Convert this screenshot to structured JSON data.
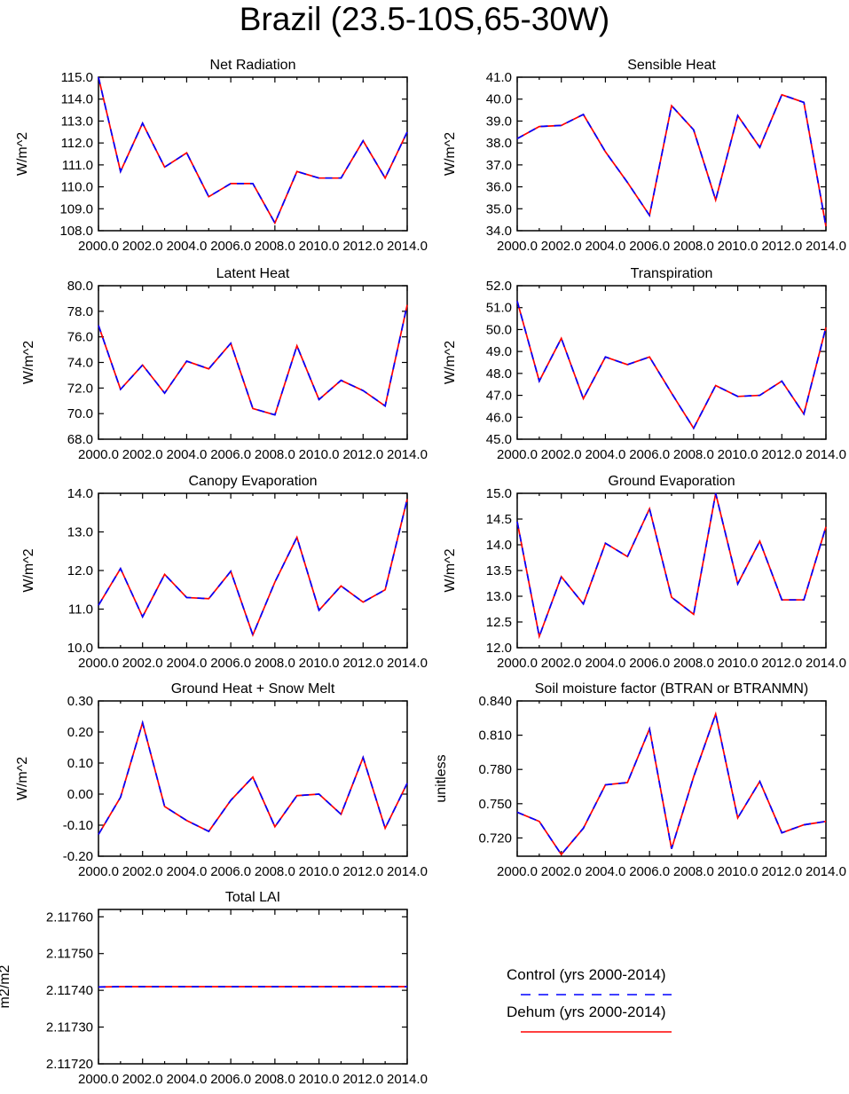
{
  "page_title": "Brazil (23.5-10S,65-30W)",
  "legend": {
    "control_label": "Control (yrs 2000-2014)",
    "control_color": "#0000ff",
    "dehum_label": "Dehum (yrs 2000-2014)",
    "dehum_color": "#ff0000"
  },
  "chart_data": [
    {
      "type": "line",
      "title": "Net Radiation",
      "ylabel": "W/m^2",
      "xlabel": "",
      "x": [
        2000,
        2001,
        2002,
        2003,
        2004,
        2005,
        2006,
        2007,
        2008,
        2009,
        2010,
        2011,
        2012,
        2013,
        2014
      ],
      "xlim": [
        2000,
        2014
      ],
      "xticks": [
        "2000.0",
        "2002.0",
        "2004.0",
        "2006.0",
        "2008.0",
        "2010.0",
        "2012.0",
        "2014.0"
      ],
      "ylim": [
        108.0,
        115.0
      ],
      "yticks": [
        "108.0",
        "109.0",
        "110.0",
        "111.0",
        "112.0",
        "113.0",
        "114.0",
        "115.0"
      ],
      "series": [
        {
          "name": "Control (yrs 2000-2014)",
          "values": [
            115.0,
            110.7,
            112.9,
            110.9,
            111.55,
            109.55,
            110.15,
            110.15,
            108.35,
            110.7,
            110.4,
            110.4,
            112.1,
            110.4,
            112.5
          ]
        },
        {
          "name": "Dehum (yrs 2000-2014)",
          "values": [
            115.0,
            110.7,
            112.9,
            110.9,
            111.55,
            109.55,
            110.15,
            110.15,
            108.35,
            110.7,
            110.4,
            110.4,
            112.1,
            110.4,
            112.5
          ]
        }
      ]
    },
    {
      "type": "line",
      "title": "Sensible Heat",
      "ylabel": "W/m^2",
      "xlabel": "",
      "x": [
        2000,
        2001,
        2002,
        2003,
        2004,
        2005,
        2006,
        2007,
        2008,
        2009,
        2010,
        2011,
        2012,
        2013,
        2014
      ],
      "xlim": [
        2000,
        2014
      ],
      "xticks": [
        "2000.0",
        "2002.0",
        "2004.0",
        "2006.0",
        "2008.0",
        "2010.0",
        "2012.0",
        "2014.0"
      ],
      "ylim": [
        34.0,
        41.0
      ],
      "yticks": [
        "34.0",
        "35.0",
        "36.0",
        "37.0",
        "38.0",
        "39.0",
        "40.0",
        "41.0"
      ],
      "series": [
        {
          "name": "Control (yrs 2000-2014)",
          "values": [
            38.2,
            38.75,
            38.8,
            39.3,
            37.6,
            36.2,
            34.7,
            39.7,
            38.6,
            35.4,
            39.25,
            37.8,
            40.2,
            39.85,
            34.2
          ]
        },
        {
          "name": "Dehum (yrs 2000-2014)",
          "values": [
            38.2,
            38.75,
            38.8,
            39.3,
            37.6,
            36.2,
            34.7,
            39.7,
            38.6,
            35.4,
            39.25,
            37.8,
            40.2,
            39.85,
            34.2
          ]
        }
      ]
    },
    {
      "type": "line",
      "title": "Latent Heat",
      "ylabel": "W/m^2",
      "xlabel": "",
      "x": [
        2000,
        2001,
        2002,
        2003,
        2004,
        2005,
        2006,
        2007,
        2008,
        2009,
        2010,
        2011,
        2012,
        2013,
        2014
      ],
      "xlim": [
        2000,
        2014
      ],
      "xticks": [
        "2000.0",
        "2002.0",
        "2004.0",
        "2006.0",
        "2008.0",
        "2010.0",
        "2012.0",
        "2014.0"
      ],
      "ylim": [
        68.0,
        80.0
      ],
      "yticks": [
        "68.0",
        "70.0",
        "72.0",
        "74.0",
        "76.0",
        "78.0",
        "80.0"
      ],
      "series": [
        {
          "name": "Control (yrs 2000-2014)",
          "values": [
            76.9,
            71.9,
            73.8,
            71.6,
            74.1,
            73.5,
            75.5,
            70.4,
            69.9,
            75.3,
            71.1,
            72.6,
            71.8,
            70.6,
            78.5
          ]
        },
        {
          "name": "Dehum (yrs 2000-2014)",
          "values": [
            76.9,
            71.9,
            73.8,
            71.6,
            74.1,
            73.5,
            75.5,
            70.4,
            69.9,
            75.3,
            71.1,
            72.6,
            71.8,
            70.6,
            78.5
          ]
        }
      ]
    },
    {
      "type": "line",
      "title": "Transpiration",
      "ylabel": "W/m^2",
      "xlabel": "",
      "x": [
        2000,
        2001,
        2002,
        2003,
        2004,
        2005,
        2006,
        2007,
        2008,
        2009,
        2010,
        2011,
        2012,
        2013,
        2014
      ],
      "xlim": [
        2000,
        2014
      ],
      "xticks": [
        "2000.0",
        "2002.0",
        "2004.0",
        "2006.0",
        "2008.0",
        "2010.0",
        "2012.0",
        "2014.0"
      ],
      "ylim": [
        45.0,
        52.0
      ],
      "yticks": [
        "45.0",
        "46.0",
        "47.0",
        "48.0",
        "49.0",
        "50.0",
        "51.0",
        "52.0"
      ],
      "series": [
        {
          "name": "Control (yrs 2000-2014)",
          "values": [
            51.3,
            47.65,
            49.6,
            46.85,
            48.75,
            48.4,
            48.75,
            47.1,
            45.5,
            47.45,
            46.95,
            47.0,
            47.65,
            46.15,
            50.1
          ]
        },
        {
          "name": "Dehum (yrs 2000-2014)",
          "values": [
            51.3,
            47.65,
            49.6,
            46.85,
            48.75,
            48.4,
            48.75,
            47.1,
            45.5,
            47.45,
            46.95,
            47.0,
            47.65,
            46.15,
            50.1
          ]
        }
      ]
    },
    {
      "type": "line",
      "title": "Canopy Evaporation",
      "ylabel": "W/m^2",
      "xlabel": "",
      "x": [
        2000,
        2001,
        2002,
        2003,
        2004,
        2005,
        2006,
        2007,
        2008,
        2009,
        2010,
        2011,
        2012,
        2013,
        2014
      ],
      "xlim": [
        2000,
        2014
      ],
      "xticks": [
        "2000.0",
        "2002.0",
        "2004.0",
        "2006.0",
        "2008.0",
        "2010.0",
        "2012.0",
        "2014.0"
      ],
      "ylim": [
        10.0,
        14.0
      ],
      "yticks": [
        "10.0",
        "11.0",
        "12.0",
        "13.0",
        "14.0"
      ],
      "series": [
        {
          "name": "Control (yrs 2000-2014)",
          "values": [
            11.1,
            12.05,
            10.8,
            11.9,
            11.3,
            11.27,
            11.98,
            10.33,
            11.7,
            12.86,
            10.97,
            11.6,
            11.18,
            11.5,
            13.85
          ]
        },
        {
          "name": "Dehum (yrs 2000-2014)",
          "values": [
            11.1,
            12.05,
            10.8,
            11.9,
            11.3,
            11.27,
            11.98,
            10.33,
            11.7,
            12.86,
            10.97,
            11.6,
            11.18,
            11.5,
            13.85
          ]
        }
      ]
    },
    {
      "type": "line",
      "title": "Ground Evaporation",
      "ylabel": "W/m^2",
      "xlabel": "",
      "x": [
        2000,
        2001,
        2002,
        2003,
        2004,
        2005,
        2006,
        2007,
        2008,
        2009,
        2010,
        2011,
        2012,
        2013,
        2014
      ],
      "xlim": [
        2000,
        2014
      ],
      "xticks": [
        "2000.0",
        "2002.0",
        "2004.0",
        "2006.0",
        "2008.0",
        "2010.0",
        "2012.0",
        "2014.0"
      ],
      "ylim": [
        12.0,
        15.0
      ],
      "yticks": [
        "12.0",
        "12.5",
        "13.0",
        "13.5",
        "14.0",
        "14.5",
        "15.0"
      ],
      "series": [
        {
          "name": "Control (yrs 2000-2014)",
          "values": [
            14.45,
            12.22,
            13.38,
            12.85,
            14.03,
            13.77,
            14.7,
            12.98,
            12.65,
            15.0,
            13.24,
            14.07,
            12.93,
            12.93,
            14.35
          ]
        },
        {
          "name": "Dehum (yrs 2000-2014)",
          "values": [
            14.45,
            12.22,
            13.38,
            12.85,
            14.03,
            13.77,
            14.7,
            12.98,
            12.65,
            15.0,
            13.24,
            14.07,
            12.93,
            12.93,
            14.35
          ]
        }
      ]
    },
    {
      "type": "line",
      "title": "Ground Heat + Snow Melt",
      "ylabel": "W/m^2",
      "xlabel": "",
      "x": [
        2000,
        2001,
        2002,
        2003,
        2004,
        2005,
        2006,
        2007,
        2008,
        2009,
        2010,
        2011,
        2012,
        2013,
        2014
      ],
      "xlim": [
        2000,
        2014
      ],
      "xticks": [
        "2000.0",
        "2002.0",
        "2004.0",
        "2006.0",
        "2008.0",
        "2010.0",
        "2012.0",
        "2014.0"
      ],
      "ylim": [
        -0.2,
        0.3
      ],
      "yticks": [
        "-0.20",
        "-0.10",
        "0.00",
        "0.10",
        "0.20",
        "0.30"
      ],
      "series": [
        {
          "name": "Control (yrs 2000-2014)",
          "values": [
            -0.13,
            -0.01,
            0.23,
            -0.04,
            -0.085,
            -0.12,
            -0.02,
            0.055,
            -0.105,
            -0.005,
            0.0,
            -0.065,
            0.118,
            -0.11,
            0.035
          ]
        },
        {
          "name": "Dehum (yrs 2000-2014)",
          "values": [
            -0.13,
            -0.01,
            0.23,
            -0.04,
            -0.085,
            -0.12,
            -0.02,
            0.055,
            -0.105,
            -0.005,
            0.0,
            -0.065,
            0.118,
            -0.11,
            0.035
          ]
        }
      ]
    },
    {
      "type": "line",
      "title": "Soil moisture factor (BTRAN or BTRANMN)",
      "ylabel": "unitless",
      "xlabel": "",
      "x": [
        2000,
        2001,
        2002,
        2003,
        2004,
        2005,
        2006,
        2007,
        2008,
        2009,
        2010,
        2011,
        2012,
        2013,
        2014
      ],
      "xlim": [
        2000,
        2014
      ],
      "xticks": [
        "2000.0",
        "2002.0",
        "2004.0",
        "2006.0",
        "2008.0",
        "2010.0",
        "2012.0",
        "2014.0"
      ],
      "ylim": [
        0.704,
        0.84
      ],
      "yticks": [
        "0.720",
        "0.750",
        "0.780",
        "0.810",
        "0.840"
      ],
      "series": [
        {
          "name": "Control (yrs 2000-2014)",
          "values": [
            0.7425,
            0.7345,
            0.7055,
            0.7285,
            0.7665,
            0.7685,
            0.8155,
            0.7105,
            0.7735,
            0.8285,
            0.7375,
            0.7695,
            0.7245,
            0.7315,
            0.7345
          ]
        },
        {
          "name": "Dehum (yrs 2000-2014)",
          "values": [
            0.7425,
            0.7345,
            0.7055,
            0.7285,
            0.7665,
            0.7685,
            0.8155,
            0.7105,
            0.7735,
            0.8285,
            0.7375,
            0.7695,
            0.7245,
            0.7315,
            0.7345
          ]
        }
      ]
    },
    {
      "type": "line",
      "title": "Total LAI",
      "ylabel": "m2/m2",
      "xlabel": "",
      "x": [
        2000,
        2001,
        2002,
        2003,
        2004,
        2005,
        2006,
        2007,
        2008,
        2009,
        2010,
        2011,
        2012,
        2013,
        2014
      ],
      "xlim": [
        2000,
        2014
      ],
      "xticks": [
        "2000.0",
        "2002.0",
        "2004.0",
        "2006.0",
        "2008.0",
        "2010.0",
        "2012.0",
        "2014.0"
      ],
      "ylim": [
        2.1172,
        2.11762
      ],
      "yticks": [
        "2.11720",
        "2.11730",
        "2.11740",
        "2.11750",
        "2.11760"
      ],
      "series": [
        {
          "name": "Control (yrs 2000-2014)",
          "values": [
            2.117409,
            2.11741,
            2.11741,
            2.11741,
            2.11741,
            2.11741,
            2.11741,
            2.11741,
            2.11741,
            2.11741,
            2.11741,
            2.11741,
            2.11741,
            2.11741,
            2.11741
          ]
        },
        {
          "name": "Dehum (yrs 2000-2014)",
          "values": [
            2.117409,
            2.11741,
            2.11741,
            2.11741,
            2.11741,
            2.11741,
            2.11741,
            2.11741,
            2.11741,
            2.11741,
            2.11741,
            2.11741,
            2.11741,
            2.11741,
            2.11741
          ]
        }
      ]
    }
  ]
}
